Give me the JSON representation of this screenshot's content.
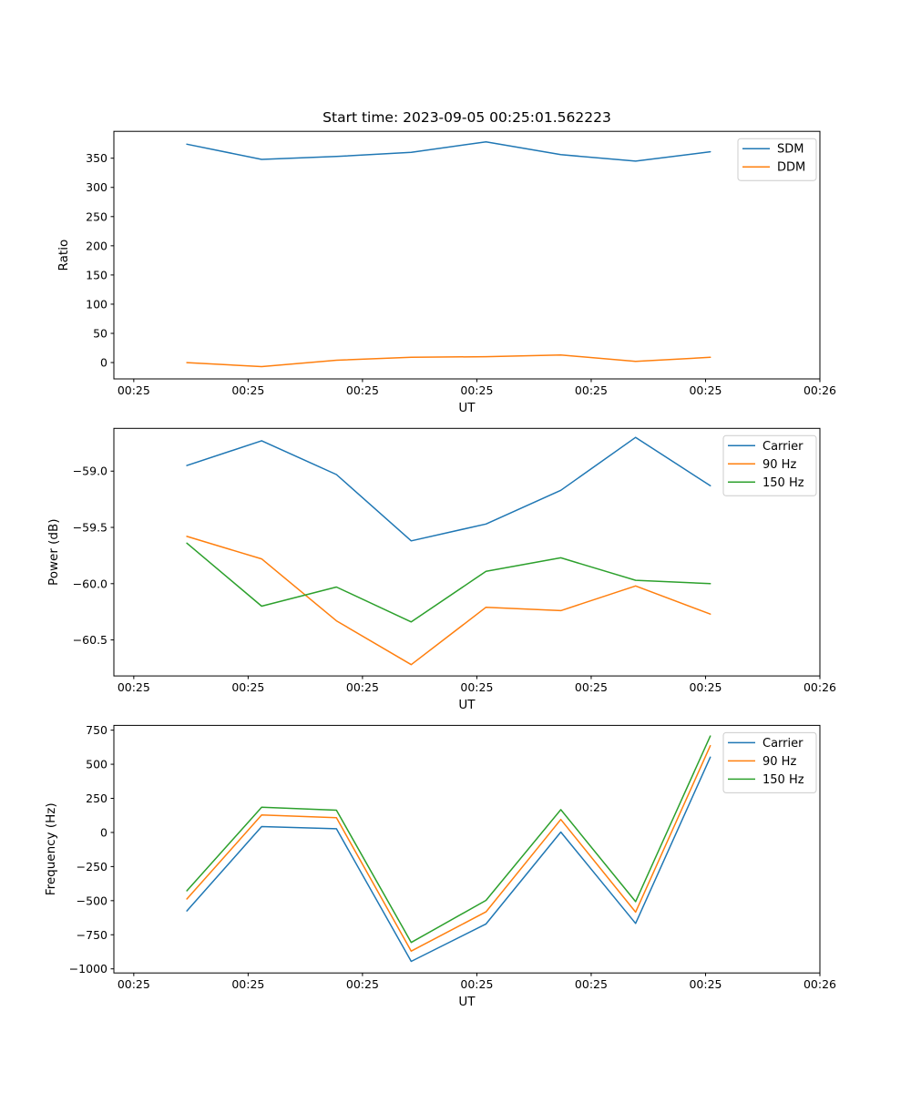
{
  "figure": {
    "title": "Start time: 2023-09-05 00:25:01.562223",
    "background_color": "#ffffff"
  },
  "chart_data": [
    {
      "type": "line",
      "title": "Start time: 2023-09-05 00:25:01.562223",
      "xlabel": "UT",
      "ylabel": "Ratio",
      "x_tick_labels": [
        "00:25",
        "00:25",
        "00:25",
        "00:25",
        "00:25",
        "00:25",
        "00:26"
      ],
      "x_ticks_seconds": [
        0,
        10,
        20,
        30,
        40,
        50,
        60
      ],
      "xlim_seconds": [
        -1.74,
        60
      ],
      "x_seconds": [
        4.64,
        11.18,
        17.72,
        24.26,
        30.8,
        37.34,
        43.88,
        50.42
      ],
      "y_ticks": [
        0,
        50,
        100,
        150,
        200,
        250,
        300,
        350
      ],
      "y_tick_labels": [
        "0",
        "50",
        "100",
        "150",
        "200",
        "250",
        "300",
        "350"
      ],
      "ylim": [
        -28,
        396
      ],
      "grid": false,
      "legend_position": "upper right",
      "series": [
        {
          "name": "SDM",
          "color": "#1f77b4",
          "values": [
            374,
            348,
            353,
            360,
            378,
            356,
            345,
            361
          ]
        },
        {
          "name": "DDM",
          "color": "#ff7f0e",
          "values": [
            0,
            -7,
            4,
            9,
            10,
            13,
            2,
            9
          ]
        }
      ]
    },
    {
      "type": "line",
      "xlabel": "UT",
      "ylabel": "Power (dB)",
      "x_tick_labels": [
        "00:25",
        "00:25",
        "00:25",
        "00:25",
        "00:25",
        "00:25",
        "00:26"
      ],
      "x_ticks_seconds": [
        0,
        10,
        20,
        30,
        40,
        50,
        60
      ],
      "xlim_seconds": [
        -1.74,
        60
      ],
      "x_seconds": [
        4.64,
        11.18,
        17.72,
        24.26,
        30.8,
        37.34,
        43.88,
        50.42
      ],
      "y_ticks": [
        -59.0,
        -59.5,
        -60.0,
        -60.5
      ],
      "y_tick_labels": [
        "−59.0",
        "−59.5",
        "−60.0",
        "−60.5"
      ],
      "ylim": [
        -60.82,
        -58.62
      ],
      "grid": false,
      "legend_position": "upper right",
      "series": [
        {
          "name": "Carrier",
          "color": "#1f77b4",
          "values": [
            -58.95,
            -58.73,
            -59.03,
            -59.62,
            -59.47,
            -59.17,
            -58.7,
            -59.13
          ]
        },
        {
          "name": "90 Hz",
          "color": "#ff7f0e",
          "values": [
            -59.58,
            -59.78,
            -60.33,
            -60.72,
            -60.21,
            -60.24,
            -60.02,
            -60.27
          ]
        },
        {
          "name": "150 Hz",
          "color": "#2ca02c",
          "values": [
            -59.64,
            -60.2,
            -60.03,
            -60.34,
            -59.89,
            -59.77,
            -59.97,
            -60.0
          ]
        }
      ]
    },
    {
      "type": "line",
      "xlabel": "UT",
      "ylabel": "Frequency (Hz)",
      "x_tick_labels": [
        "00:25",
        "00:25",
        "00:25",
        "00:25",
        "00:25",
        "00:25",
        "00:26"
      ],
      "x_ticks_seconds": [
        0,
        10,
        20,
        30,
        40,
        50,
        60
      ],
      "xlim_seconds": [
        -1.74,
        60
      ],
      "x_seconds": [
        4.64,
        11.18,
        17.72,
        24.26,
        30.8,
        37.34,
        43.88,
        50.42
      ],
      "y_ticks": [
        750,
        500,
        250,
        0,
        -250,
        -500,
        -750,
        -1000
      ],
      "y_tick_labels": [
        "750",
        "500",
        "250",
        "0",
        "−250",
        "−500",
        "−750",
        "−1000"
      ],
      "ylim": [
        -1030,
        785
      ],
      "grid": false,
      "legend_position": "upper right",
      "series": [
        {
          "name": "Carrier",
          "color": "#1f77b4",
          "values": [
            -575,
            43,
            27,
            -945,
            -671,
            3,
            -667,
            552
          ]
        },
        {
          "name": "90 Hz",
          "color": "#ff7f0e",
          "values": [
            -488,
            128,
            108,
            -870,
            -582,
            95,
            -584,
            636
          ]
        },
        {
          "name": "150 Hz",
          "color": "#2ca02c",
          "values": [
            -428,
            185,
            163,
            -806,
            -498,
            167,
            -507,
            707
          ]
        }
      ]
    }
  ]
}
